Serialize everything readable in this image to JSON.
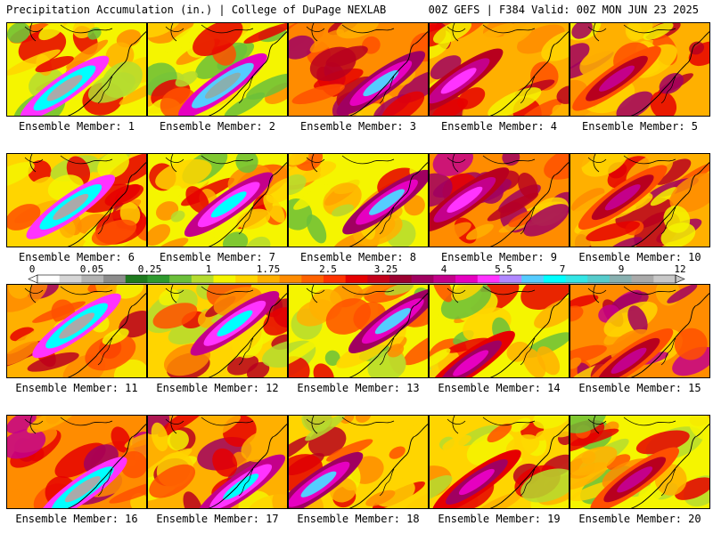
{
  "header": {
    "title_left": "Precipitation Accumulation (in.) | College of DuPage NEXLAB",
    "title_right": "00Z GEFS | F384 Valid: 00Z MON JUN 23 2025"
  },
  "colorbar": {
    "labels": [
      "0",
      "0.05",
      "0.25",
      "1",
      "1.75",
      "2.5",
      "3.25",
      "4",
      "5.5",
      "7",
      "9",
      "12"
    ],
    "colors": [
      "#ffffff",
      "#d6d6d6",
      "#b3b3b3",
      "#8c8c8c",
      "#1e7a1e",
      "#2e9a2e",
      "#6bbf3a",
      "#b5dc2f",
      "#f5f500",
      "#ffd500",
      "#ffb000",
      "#ff8c00",
      "#ff6200",
      "#ff3300",
      "#e60000",
      "#c4001a",
      "#9c0030",
      "#a00060",
      "#c4008a",
      "#e600c0",
      "#ff33ff",
      "#b088ff",
      "#55ccff",
      "#00ffff",
      "#33e6e6",
      "#55cccc",
      "#88b0b0",
      "#aaaaaa",
      "#c8c8c8"
    ]
  },
  "panels": [
    {
      "caption": "Ensemble Member: 1"
    },
    {
      "caption": "Ensemble Member: 2"
    },
    {
      "caption": "Ensemble Member: 3"
    },
    {
      "caption": "Ensemble Member: 4"
    },
    {
      "caption": "Ensemble Member: 5"
    },
    {
      "caption": "Ensemble Member: 6"
    },
    {
      "caption": "Ensemble Member: 7"
    },
    {
      "caption": "Ensemble Member: 8"
    },
    {
      "caption": "Ensemble Member: 9"
    },
    {
      "caption": "Ensemble Member: 10"
    },
    {
      "caption": "Ensemble Member: 11"
    },
    {
      "caption": "Ensemble Member: 12"
    },
    {
      "caption": "Ensemble Member: 13"
    },
    {
      "caption": "Ensemble Member: 14"
    },
    {
      "caption": "Ensemble Member: 15"
    },
    {
      "caption": "Ensemble Member: 16"
    },
    {
      "caption": "Ensemble Member: 17"
    },
    {
      "caption": "Ensemble Member: 18"
    },
    {
      "caption": "Ensemble Member: 19"
    },
    {
      "caption": "Ensemble Member: 20"
    }
  ]
}
